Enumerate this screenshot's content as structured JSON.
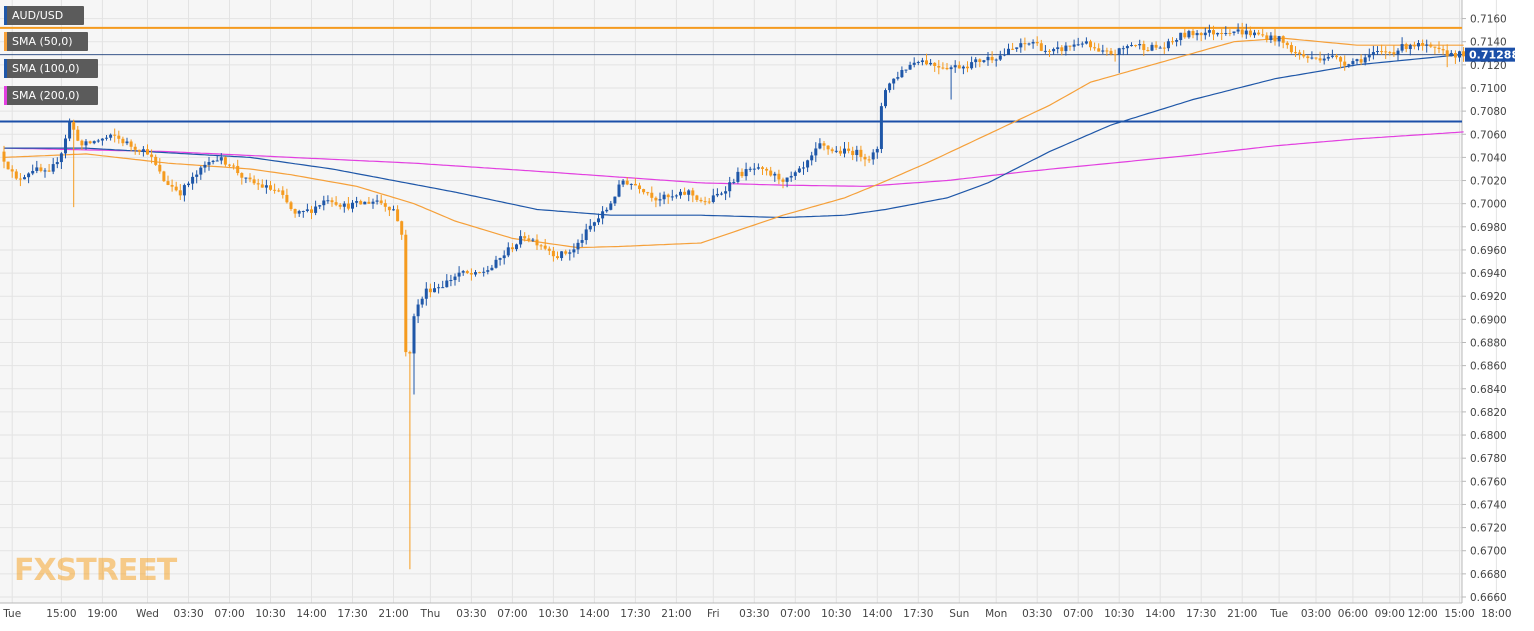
{
  "legend": {
    "pair": "AUD/USD",
    "sma50": "SMA (50,0)",
    "sma100": "SMA (100,0)",
    "sma200": "SMA (200,0)"
  },
  "watermark": "FXSTREET",
  "colors": {
    "background": "#f6f6f6",
    "grid": "#e3e3e3",
    "bull": "#1f57a8",
    "bear": "#f59b1f",
    "sma50": "#f5a03a",
    "sma100": "#1f57a8",
    "sma200": "#e23fe0",
    "resistance": "#f59b1f",
    "support": "#1b4fa8",
    "price_label_bg": "#1b4fa8",
    "watermark": "#f5a62e"
  },
  "chart_data": {
    "type": "candlestick",
    "symbol": "AUD/USD",
    "timeframe": "1H",
    "ylim": [
      0.666,
      0.717
    ],
    "yticks": [
      0.666,
      0.668,
      0.67,
      0.672,
      0.674,
      0.676,
      0.678,
      0.68,
      0.682,
      0.684,
      0.686,
      0.688,
      0.69,
      0.692,
      0.694,
      0.696,
      0.698,
      0.7,
      0.702,
      0.704,
      0.706,
      0.708,
      0.71,
      0.712,
      0.714,
      0.716
    ],
    "xticks": [
      {
        "label": "Tue",
        "x": 2
      },
      {
        "label": "15:00",
        "x": 14
      },
      {
        "label": "19:00",
        "x": 24
      },
      {
        "label": "Wed",
        "x": 35
      },
      {
        "label": "03:30",
        "x": 45
      },
      {
        "label": "07:00",
        "x": 55
      },
      {
        "label": "10:30",
        "x": 65
      },
      {
        "label": "14:00",
        "x": 75
      },
      {
        "label": "17:30",
        "x": 85
      },
      {
        "label": "21:00",
        "x": 95
      },
      {
        "label": "Thu",
        "x": 104
      },
      {
        "label": "03:30",
        "x": 114
      },
      {
        "label": "07:00",
        "x": 124
      },
      {
        "label": "10:30",
        "x": 134
      },
      {
        "label": "14:00",
        "x": 144
      },
      {
        "label": "17:30",
        "x": 154
      },
      {
        "label": "21:00",
        "x": 164
      },
      {
        "label": "Fri",
        "x": 173
      },
      {
        "label": "03:30",
        "x": 183
      },
      {
        "label": "07:00",
        "x": 193
      },
      {
        "label": "10:30",
        "x": 203
      },
      {
        "label": "14:00",
        "x": 213
      },
      {
        "label": "17:30",
        "x": 223
      },
      {
        "label": "Sun",
        "x": 233
      },
      {
        "label": "Mon",
        "x": 242
      },
      {
        "label": "03:30",
        "x": 252
      },
      {
        "label": "07:00",
        "x": 262
      },
      {
        "label": "10:30",
        "x": 272
      },
      {
        "label": "14:00",
        "x": 282
      },
      {
        "label": "17:30",
        "x": 292
      },
      {
        "label": "21:00",
        "x": 302
      },
      {
        "label": "Tue",
        "x": 311
      },
      {
        "label": "03:00",
        "x": 320
      },
      {
        "label": "06:00",
        "x": 329
      },
      {
        "label": "09:00",
        "x": 338
      },
      {
        "label": "12:00",
        "x": 346
      },
      {
        "label": "15:00",
        "x": 355
      },
      {
        "label": "18:00",
        "x": 364
      }
    ],
    "x_max": 370,
    "last_price": "0.71288",
    "last_value": 0.71288,
    "horizontal_levels": [
      {
        "name": "resistance",
        "value": 0.7152
      },
      {
        "name": "support",
        "value": 0.7071
      }
    ],
    "anchors": [
      [
        0,
        0.7045
      ],
      [
        4,
        0.702
      ],
      [
        8,
        0.703
      ],
      [
        12,
        0.7025
      ],
      [
        15,
        0.7045
      ],
      [
        17,
        0.707
      ],
      [
        20,
        0.705
      ],
      [
        24,
        0.7055
      ],
      [
        28,
        0.7058
      ],
      [
        32,
        0.705
      ],
      [
        36,
        0.7045
      ],
      [
        40,
        0.702
      ],
      [
        44,
        0.701
      ],
      [
        48,
        0.7025
      ],
      [
        52,
        0.704
      ],
      [
        56,
        0.7035
      ],
      [
        60,
        0.702
      ],
      [
        64,
        0.7015
      ],
      [
        68,
        0.701
      ],
      [
        72,
        0.699
      ],
      [
        76,
        0.6995
      ],
      [
        80,
        0.7005
      ],
      [
        84,
        0.6998
      ],
      [
        88,
        0.7
      ],
      [
        92,
        0.7003
      ],
      [
        96,
        0.6995
      ],
      [
        98,
        0.6975
      ],
      [
        99,
        0.687
      ],
      [
        100,
        0.687
      ],
      [
        101,
        0.6905
      ],
      [
        104,
        0.6925
      ],
      [
        108,
        0.693
      ],
      [
        112,
        0.694
      ],
      [
        116,
        0.6938
      ],
      [
        120,
        0.6945
      ],
      [
        124,
        0.696
      ],
      [
        128,
        0.6972
      ],
      [
        132,
        0.6965
      ],
      [
        136,
        0.6955
      ],
      [
        140,
        0.696
      ],
      [
        144,
        0.698
      ],
      [
        148,
        0.6995
      ],
      [
        152,
        0.702
      ],
      [
        156,
        0.7015
      ],
      [
        160,
        0.7005
      ],
      [
        164,
        0.7005
      ],
      [
        168,
        0.701
      ],
      [
        172,
        0.7
      ],
      [
        176,
        0.701
      ],
      [
        180,
        0.7025
      ],
      [
        184,
        0.703
      ],
      [
        188,
        0.7025
      ],
      [
        192,
        0.702
      ],
      [
        196,
        0.703
      ],
      [
        200,
        0.705
      ],
      [
        204,
        0.7045
      ],
      [
        208,
        0.7045
      ],
      [
        212,
        0.704
      ],
      [
        214,
        0.7045
      ],
      [
        215,
        0.7085
      ],
      [
        216,
        0.71
      ],
      [
        220,
        0.7115
      ],
      [
        224,
        0.7125
      ],
      [
        228,
        0.712
      ],
      [
        232,
        0.7118
      ],
      [
        236,
        0.712
      ],
      [
        240,
        0.7125
      ],
      [
        244,
        0.7128
      ],
      [
        248,
        0.7135
      ],
      [
        252,
        0.714
      ],
      [
        256,
        0.713
      ],
      [
        260,
        0.7135
      ],
      [
        264,
        0.714
      ],
      [
        268,
        0.713
      ],
      [
        272,
        0.713
      ],
      [
        276,
        0.7138
      ],
      [
        280,
        0.7135
      ],
      [
        284,
        0.7135
      ],
      [
        288,
        0.7145
      ],
      [
        292,
        0.7148
      ],
      [
        296,
        0.7148
      ],
      [
        300,
        0.715
      ],
      [
        304,
        0.7148
      ],
      [
        308,
        0.7145
      ],
      [
        312,
        0.7142
      ],
      [
        316,
        0.713
      ],
      [
        320,
        0.7125
      ],
      [
        324,
        0.7128
      ],
      [
        328,
        0.7122
      ],
      [
        332,
        0.7125
      ],
      [
        336,
        0.713
      ],
      [
        340,
        0.7132
      ],
      [
        344,
        0.7138
      ],
      [
        348,
        0.7135
      ],
      [
        352,
        0.713
      ],
      [
        356,
        0.7129
      ]
    ],
    "sma50": [
      [
        0,
        0.704
      ],
      [
        20,
        0.7043
      ],
      [
        40,
        0.7035
      ],
      [
        60,
        0.703
      ],
      [
        70,
        0.7025
      ],
      [
        86,
        0.7015
      ],
      [
        100,
        0.7
      ],
      [
        110,
        0.6985
      ],
      [
        124,
        0.697
      ],
      [
        140,
        0.6962
      ],
      [
        150,
        0.6963
      ],
      [
        170,
        0.6966
      ],
      [
        190,
        0.699
      ],
      [
        205,
        0.7005
      ],
      [
        214,
        0.7018
      ],
      [
        225,
        0.7035
      ],
      [
        240,
        0.706
      ],
      [
        255,
        0.7085
      ],
      [
        265,
        0.7105
      ],
      [
        280,
        0.712
      ],
      [
        300,
        0.714
      ],
      [
        312,
        0.7143
      ],
      [
        330,
        0.7137
      ],
      [
        356,
        0.7137
      ]
    ],
    "sma100": [
      [
        0,
        0.7048
      ],
      [
        20,
        0.7048
      ],
      [
        40,
        0.7044
      ],
      [
        60,
        0.704
      ],
      [
        80,
        0.703
      ],
      [
        95,
        0.702
      ],
      [
        110,
        0.701
      ],
      [
        130,
        0.6995
      ],
      [
        148,
        0.699
      ],
      [
        170,
        0.699
      ],
      [
        190,
        0.6988
      ],
      [
        205,
        0.699
      ],
      [
        215,
        0.6995
      ],
      [
        230,
        0.7005
      ],
      [
        240,
        0.7018
      ],
      [
        255,
        0.7045
      ],
      [
        270,
        0.7068
      ],
      [
        290,
        0.709
      ],
      [
        310,
        0.7108
      ],
      [
        330,
        0.712
      ],
      [
        356,
        0.7129
      ]
    ],
    "sma200": [
      [
        0,
        0.7048
      ],
      [
        40,
        0.7045
      ],
      [
        70,
        0.704
      ],
      [
        100,
        0.7035
      ],
      [
        130,
        0.7028
      ],
      [
        150,
        0.7023
      ],
      [
        170,
        0.7018
      ],
      [
        190,
        0.7016
      ],
      [
        210,
        0.7015
      ],
      [
        230,
        0.702
      ],
      [
        250,
        0.7028
      ],
      [
        270,
        0.7035
      ],
      [
        290,
        0.7042
      ],
      [
        310,
        0.705
      ],
      [
        330,
        0.7056
      ],
      [
        356,
        0.7062
      ]
    ],
    "grid": true,
    "legend_position": "top-left"
  }
}
